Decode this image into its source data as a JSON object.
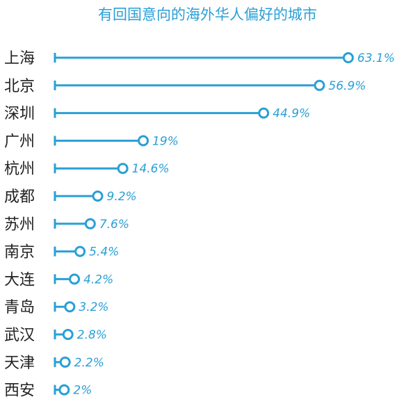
{
  "chart_data": {
    "type": "bar",
    "title": "有回国意向的海外华人偏好的城市",
    "xlabel": "",
    "ylabel": "",
    "categories": [
      "上海",
      "北京",
      "深圳",
      "广州",
      "杭州",
      "成都",
      "苏州",
      "南京",
      "大连",
      "青岛",
      "武汉",
      "天津",
      "西安"
    ],
    "values": [
      63.1,
      56.9,
      44.9,
      19,
      14.6,
      9.2,
      7.6,
      5.4,
      4.2,
      3.2,
      2.8,
      2.2,
      2
    ],
    "value_labels": [
      "63.1%",
      "56.9%",
      "44.9%",
      "19%",
      "14.6%",
      "9.2%",
      "7.6%",
      "5.4%",
      "4.2%",
      "3.2%",
      "2.8%",
      "2.2%",
      "2%"
    ],
    "xlim": [
      0,
      63.1
    ],
    "orientation": "horizontal",
    "grid": false,
    "legend": "none",
    "colors": {
      "accent": "#2a9fd6",
      "label": "#222222"
    }
  }
}
